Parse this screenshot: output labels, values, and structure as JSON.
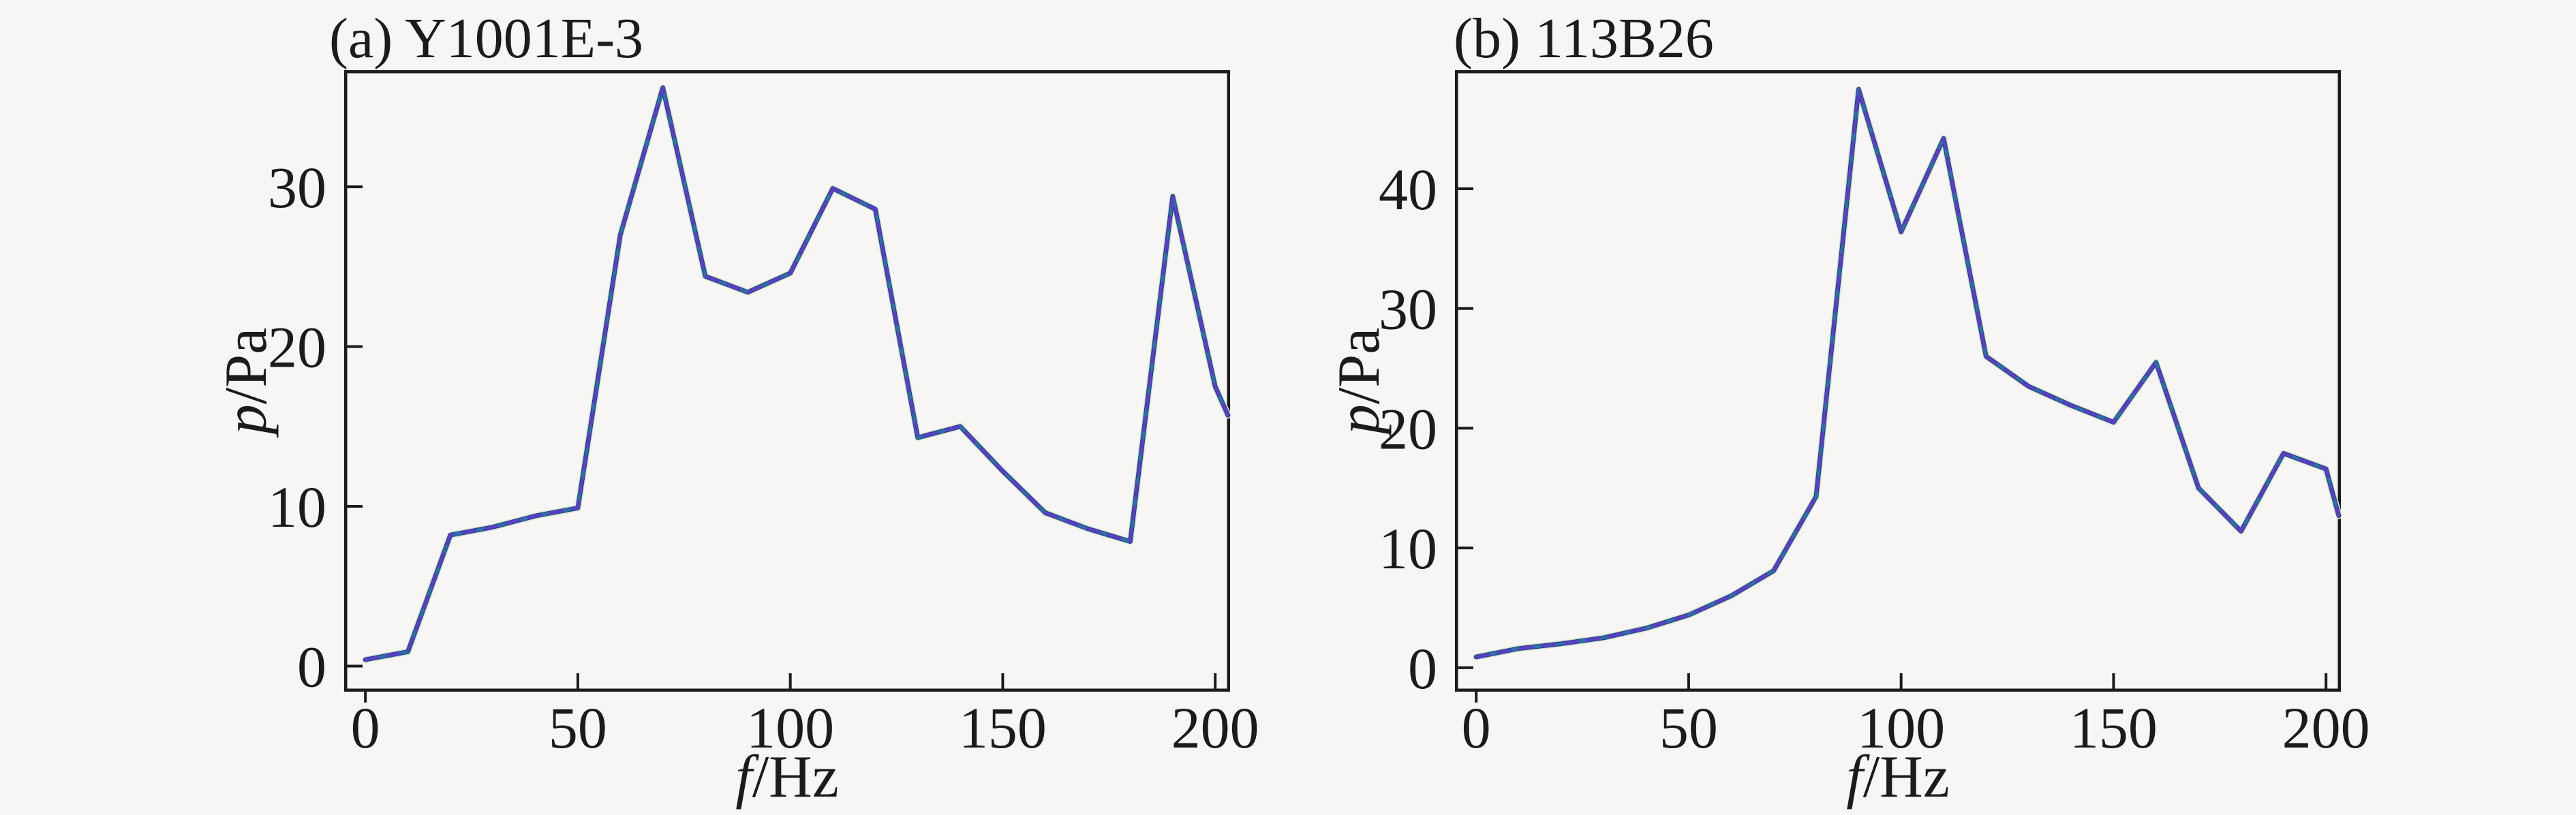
{
  "page": {
    "background": "#f7f6f4",
    "axis_color": "#1b1b1d",
    "text_color": "#1b1b1d"
  },
  "chart_data": [
    {
      "type": "line",
      "title": "(a) Y1001E-3",
      "xlabel": "f/Hz",
      "ylabel": "p/Pa",
      "xlabel_var": "f",
      "xlabel_unit": "/Hz",
      "ylabel_var": "p",
      "ylabel_unit": "/Pa",
      "grid": false,
      "legend": null,
      "xlim": [
        -5,
        203.5
      ],
      "ylim": [
        -1.6,
        37.3
      ],
      "xticks": [
        0,
        50,
        100,
        150,
        200
      ],
      "yticks": [
        0,
        10,
        20,
        30
      ],
      "x": [
        0,
        10,
        20,
        30,
        40,
        50,
        60,
        70,
        80,
        90,
        100,
        110,
        120,
        130,
        140,
        150,
        160,
        170,
        180,
        190,
        200,
        203
      ],
      "values": [
        0.4,
        0.9,
        8.2,
        8.7,
        9.4,
        9.9,
        27.0,
        36.2,
        24.4,
        23.4,
        24.6,
        29.9,
        28.6,
        14.3,
        15.0,
        12.2,
        9.6,
        8.6,
        7.8,
        29.4,
        17.5,
        15.7
      ],
      "line_layers": [
        {
          "color": "#ece9bb",
          "width": 10
        },
        {
          "color": "#9ad6f0",
          "width": 8
        },
        {
          "color": "#17296b",
          "width": 6.5
        },
        {
          "color": "#2f6fa8",
          "width": 5
        },
        {
          "color": "#5a3fc2",
          "width": 5,
          "dash": "18 15"
        }
      ]
    },
    {
      "type": "line",
      "title": "(b) 113B26",
      "xlabel": "f/Hz",
      "ylabel": "p/Pa",
      "xlabel_var": "f",
      "xlabel_unit": "/Hz",
      "ylabel_var": "p",
      "ylabel_unit": "/Pa",
      "grid": false,
      "legend": null,
      "xlim": [
        -5,
        203.5
      ],
      "ylim": [
        -2.0,
        49.9
      ],
      "xticks": [
        0,
        50,
        100,
        150,
        200
      ],
      "yticks": [
        0,
        10,
        20,
        30,
        40
      ],
      "x": [
        0,
        10,
        20,
        30,
        40,
        50,
        60,
        70,
        80,
        90,
        100,
        110,
        120,
        130,
        140,
        150,
        160,
        170,
        180,
        190,
        200,
        203
      ],
      "values": [
        0.9,
        1.6,
        2.0,
        2.5,
        3.3,
        4.4,
        6.0,
        8.1,
        14.3,
        48.3,
        36.4,
        44.2,
        26.0,
        23.5,
        21.9,
        20.5,
        25.5,
        15.0,
        11.4,
        17.9,
        16.6,
        12.7
      ],
      "line_layers": [
        {
          "color": "#ece9bb",
          "width": 10
        },
        {
          "color": "#9ad6f0",
          "width": 8
        },
        {
          "color": "#17296b",
          "width": 6.5
        },
        {
          "color": "#2f6fa8",
          "width": 5
        },
        {
          "color": "#5a3fc2",
          "width": 5,
          "dash": "18 15"
        }
      ]
    }
  ]
}
